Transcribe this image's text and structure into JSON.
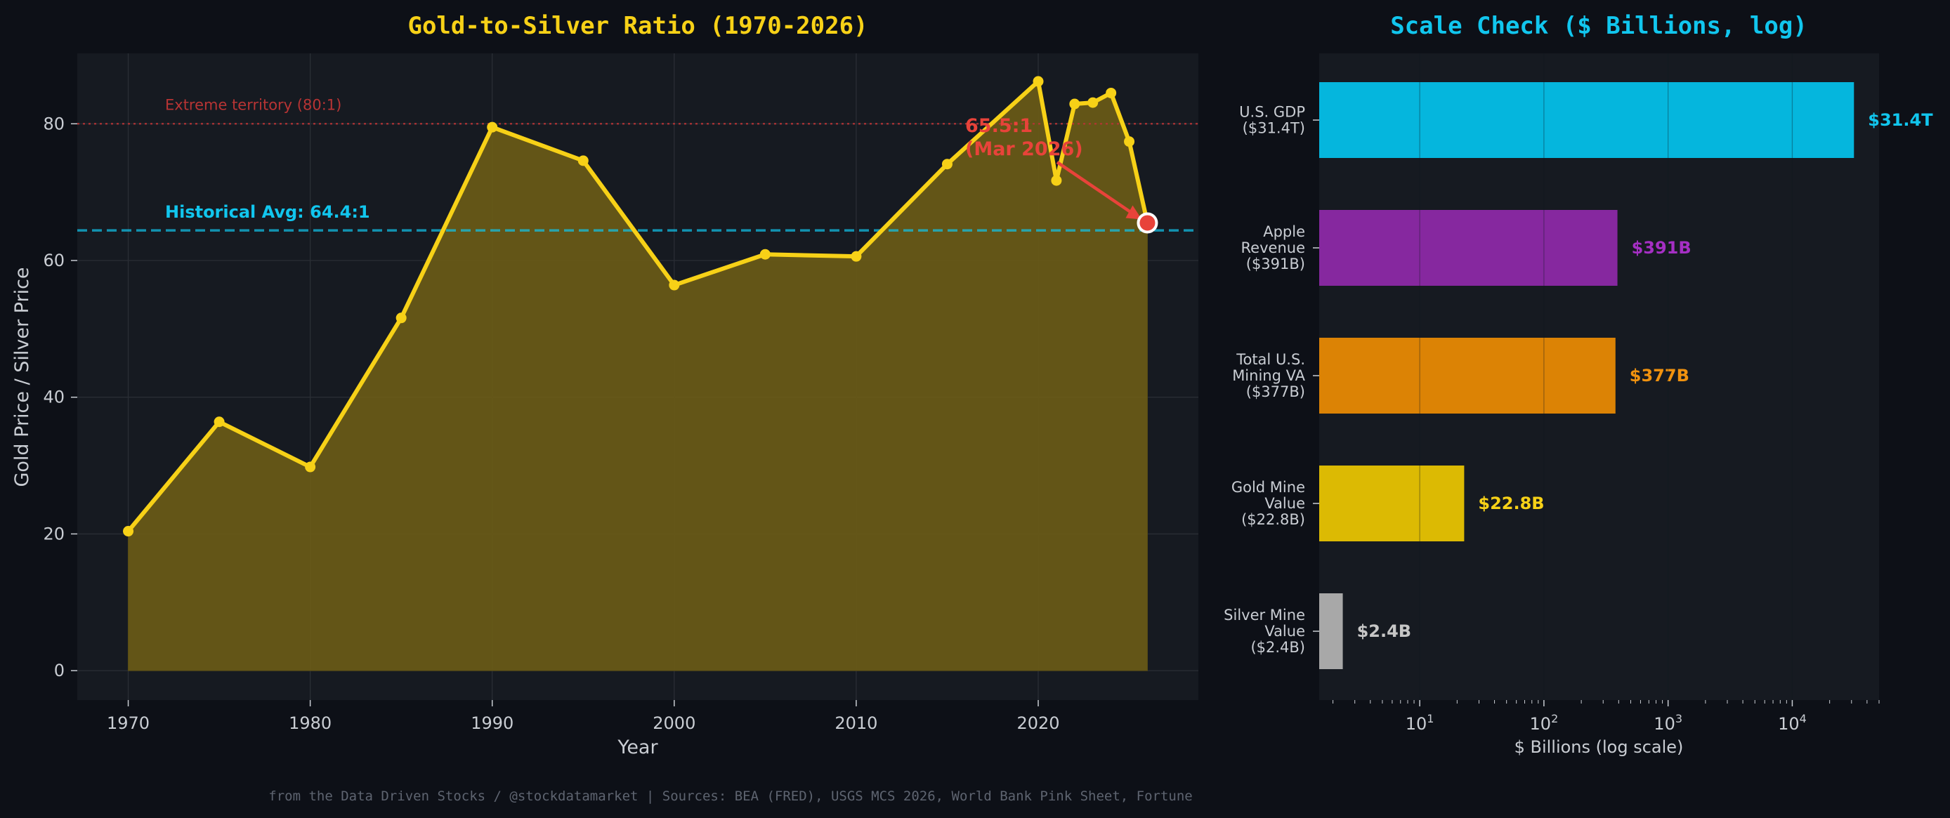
{
  "colors": {
    "background": "#0d1017",
    "panel": "#161a21",
    "gold": "#f7d117",
    "fill": "#6b5c16",
    "cyan": "#11c6ee",
    "red": "#e8433a",
    "purple": "#8d26a8",
    "orange": "#e0870a",
    "grey": "#a8a8a8"
  },
  "chart_data": [
    {
      "type": "area",
      "title": "Gold-to-Silver Ratio (1970-2026)",
      "xlabel": "Year",
      "ylabel": "Gold Price / Silver Price",
      "xlim": [
        1967.2,
        2028.8
      ],
      "ylim": [
        -4.3,
        90.3
      ],
      "x_ticks": [
        1970,
        1980,
        1990,
        2000,
        2010,
        2020
      ],
      "y_ticks": [
        0,
        20,
        40,
        60,
        80
      ],
      "grid": true,
      "series": [
        {
          "x": [
            1970,
            1975,
            1980,
            1985,
            1990,
            1995,
            2000,
            2005,
            2010,
            2015,
            2020,
            2021,
            2022,
            2023,
            2024,
            2025,
            2026
          ],
          "y": [
            20.4,
            36.4,
            29.8,
            51.6,
            79.5,
            74.6,
            56.4,
            60.9,
            60.6,
            74.1,
            86.2,
            71.7,
            82.9,
            83.1,
            84.5,
            77.4,
            65.5
          ]
        }
      ],
      "reference_lines": [
        {
          "y": 80,
          "style": "dotted",
          "label": "Extreme territory (80:1)",
          "color": "#b73434"
        },
        {
          "y": 64.4,
          "style": "dashed",
          "label": "Historical Avg: 64.4:1",
          "color": "#11c6ee"
        }
      ],
      "annotation": {
        "x": 2026,
        "y": 65.5,
        "line1": "65.5:1",
        "line2": "(Mar 2026)"
      }
    },
    {
      "type": "bar",
      "orientation": "horizontal",
      "title": "Scale Check ($ Billions, log)",
      "xlabel": "$ Billions (log scale)",
      "xscale": "log",
      "xlim": [
        1.55,
        50000
      ],
      "x_ticks": [
        {
          "value": 10,
          "base": "10",
          "exp": "1"
        },
        {
          "value": 100,
          "base": "10",
          "exp": "2"
        },
        {
          "value": 1000,
          "base": "10",
          "exp": "3"
        },
        {
          "value": 10000,
          "base": "10",
          "exp": "4"
        }
      ],
      "categories": [
        [
          "U.S. GDP",
          "($31.4T)"
        ],
        [
          "Apple",
          "Revenue",
          "($391B)"
        ],
        [
          "Total U.S.",
          "Mining VA",
          "($377B)"
        ],
        [
          "Gold Mine",
          "Value",
          "($22.8B)"
        ],
        [
          "Silver Mine",
          "Value",
          "($2.4B)"
        ]
      ],
      "values": [
        31400,
        391,
        377,
        22.8,
        2.4
      ],
      "value_labels": [
        "$31.4T",
        "$391B",
        "$377B",
        "$22.8B",
        "$2.4B"
      ],
      "bar_colors": [
        "#05b6dd",
        "#86289f",
        "#dc8305",
        "#dcba03",
        "#a8a8a8"
      ],
      "label_colors": [
        "#11c6ee",
        "#a52fc4",
        "#f0920f",
        "#f7d117",
        "#c6c6c6"
      ]
    }
  ],
  "footer": "from the Data Driven Stocks / @stockdatamarket  |  Sources: BEA (FRED), USGS MCS 2026, World Bank Pink Sheet, Fortune"
}
